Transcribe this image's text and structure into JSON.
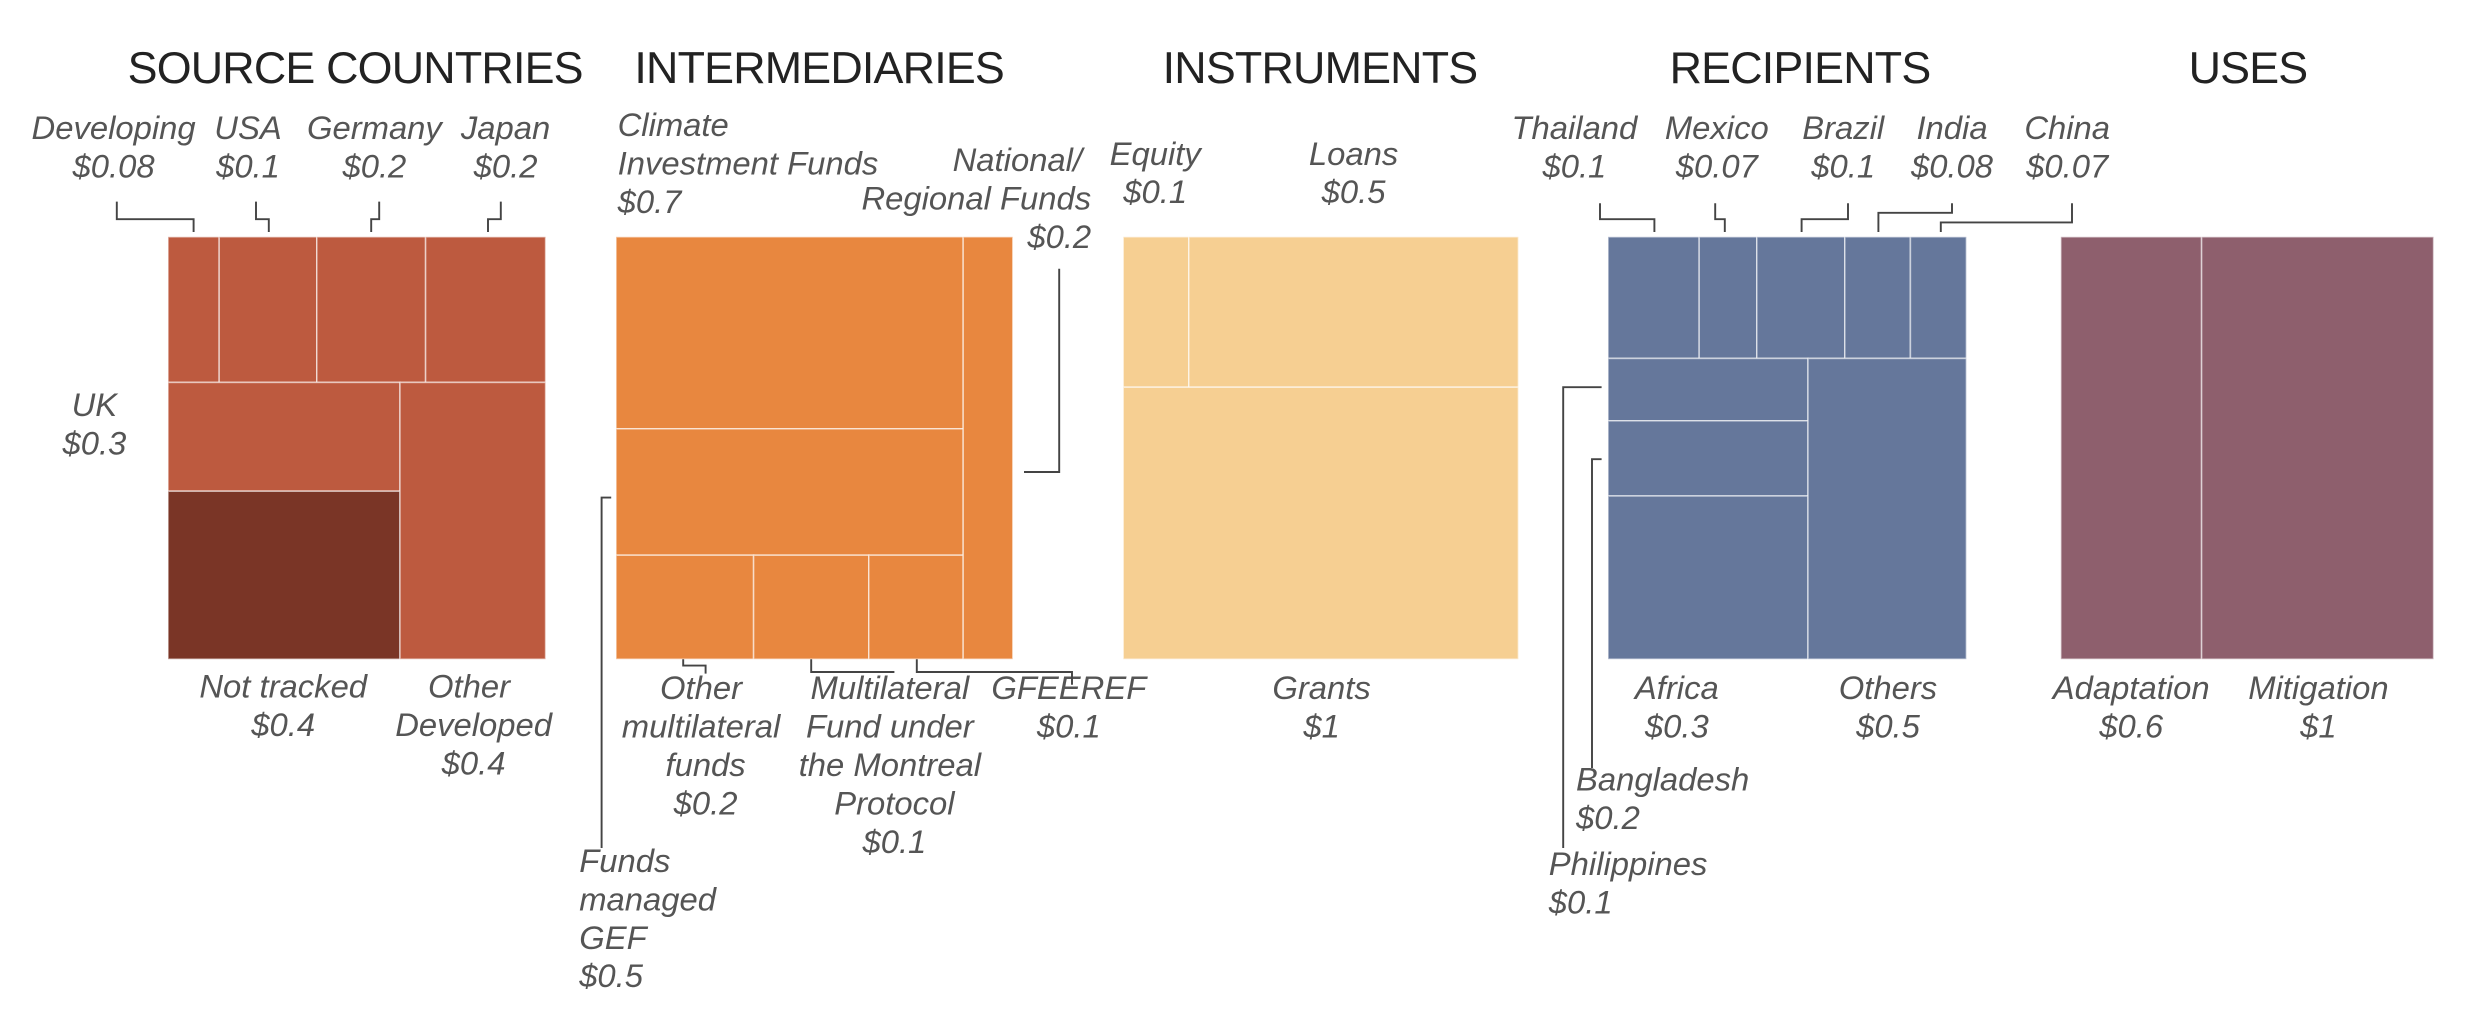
{
  "chart_data": [
    {
      "type": "treemap",
      "title": "SOURCE COUNTRIES",
      "categories": [
        "Developing",
        "USA",
        "Germany",
        "Japan",
        "UK",
        "Not tracked",
        "Other\nDeveloped"
      ],
      "values": [
        0.08,
        0.1,
        0.2,
        0.2,
        0.3,
        0.4,
        0.4
      ],
      "value_labels": [
        "$0.08",
        "$0.1",
        "$0.2",
        "$0.2",
        "$0.3",
        "$0.4",
        "$0.4"
      ],
      "colors": [
        "#bd5a3f",
        "#bd5a3f",
        "#bd5a3f",
        "#bd5a3f",
        "#bd5a3f",
        "#7a3526",
        "#bd5a3f"
      ]
    },
    {
      "type": "treemap",
      "title": "INTERMEDIARIES",
      "categories": [
        "Climate\nInvestment Funds",
        "Funds\nmanaged\nGEF",
        "Other\nmultilateral\nfunds",
        "Multilateral\nFund under\nthe Montreal\nProtocol",
        "GFEEREF",
        "National/\nRegional Funds"
      ],
      "values": [
        0.7,
        0.5,
        0.2,
        0.1,
        0.1,
        0.2
      ],
      "value_labels": [
        "$0.7",
        "$0.5",
        "$0.2",
        "$0.1",
        "$0.1",
        "$0.2"
      ],
      "colors": [
        "#e8873f",
        "#e8873f",
        "#e8873f",
        "#e8873f",
        "#e8873f",
        "#e8873f"
      ]
    },
    {
      "type": "treemap",
      "title": "INSTRUMENTS",
      "categories": [
        "Equity",
        "Loans",
        "Grants"
      ],
      "values": [
        0.1,
        0.5,
        1
      ],
      "value_labels": [
        "$0.1",
        "$0.5",
        "$1"
      ],
      "colors": [
        "#f6cf92",
        "#f6cf92",
        "#f6cf92"
      ]
    },
    {
      "type": "treemap",
      "title": "RECIPIENTS",
      "categories": [
        "Thailand",
        "Mexico",
        "Brazil",
        "India",
        "China",
        "Philippines",
        "Bangladesh",
        "Africa",
        "Others"
      ],
      "values": [
        0.1,
        0.07,
        0.1,
        0.08,
        0.07,
        0.1,
        0.2,
        0.3,
        0.5
      ],
      "value_labels": [
        "$0.1",
        "$0.07",
        "$0.1",
        "$0.08",
        "$0.07",
        "$0.1",
        "$0.2",
        "$0.3",
        "$0.5"
      ],
      "colors": [
        "#65779b",
        "#65779b",
        "#65779b",
        "#65779b",
        "#65779b",
        "#65779b",
        "#65779b",
        "#65779b",
        "#65779b"
      ]
    },
    {
      "type": "treemap",
      "title": "USES",
      "categories": [
        "Adaptation",
        "Mitigation"
      ],
      "values": [
        0.6,
        1
      ],
      "value_labels": [
        "$0.6",
        "$1"
      ],
      "colors": [
        "#8e5f6d",
        "#8e5f6d"
      ]
    }
  ]
}
